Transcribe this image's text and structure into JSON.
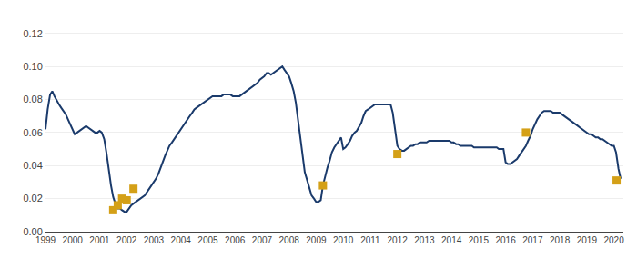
{
  "chart_data": {
    "type": "line",
    "xlim": [
      1999,
      2020.35
    ],
    "xticks": [
      1999,
      2000,
      2001,
      2002,
      2003,
      2004,
      2005,
      2006,
      2007,
      2008,
      2009,
      2010,
      2011,
      2012,
      2013,
      2014,
      2015,
      2016,
      2017,
      2018,
      2019,
      2020
    ],
    "ylim": [
      0.0,
      0.132
    ],
    "yticks": [
      {
        "value": 0.0,
        "label": "0.00"
      },
      0.02,
      0.04,
      0.06,
      0.08,
      {
        "value": 0.1,
        "label": "0.10"
      },
      0.12
    ],
    "grid": "y",
    "series": [
      {
        "type": "line",
        "color": "#1a3a6b",
        "x": [
          1999.0,
          1999.08,
          1999.17,
          1999.25,
          1999.33,
          1999.42,
          1999.5,
          1999.58,
          1999.67,
          1999.75,
          1999.83,
          1999.92,
          2000.0,
          2000.08,
          2000.17,
          2000.25,
          2000.33,
          2000.42,
          2000.5,
          2000.58,
          2000.67,
          2000.75,
          2000.83,
          2000.92,
          2001.0,
          2001.08,
          2001.17,
          2001.25,
          2001.33,
          2001.42,
          2001.5,
          2001.58,
          2001.67,
          2001.75,
          2001.83,
          2001.92,
          2002.0,
          2002.08,
          2002.17,
          2002.25,
          2002.33,
          2002.42,
          2002.5,
          2002.58,
          2002.67,
          2002.75,
          2002.83,
          2002.92,
          2003.0,
          2003.08,
          2003.17,
          2003.25,
          2003.33,
          2003.42,
          2003.5,
          2003.58,
          2003.67,
          2003.75,
          2003.83,
          2003.92,
          2004.0,
          2004.08,
          2004.17,
          2004.25,
          2004.33,
          2004.42,
          2004.5,
          2004.58,
          2004.67,
          2004.75,
          2004.83,
          2004.92,
          2005.0,
          2005.08,
          2005.17,
          2005.25,
          2005.33,
          2005.42,
          2005.5,
          2005.58,
          2005.67,
          2005.75,
          2005.83,
          2005.92,
          2006.0,
          2006.08,
          2006.17,
          2006.25,
          2006.33,
          2006.42,
          2006.5,
          2006.58,
          2006.67,
          2006.75,
          2006.83,
          2006.92,
          2007.0,
          2007.08,
          2007.17,
          2007.25,
          2007.33,
          2007.42,
          2007.5,
          2007.58,
          2007.67,
          2007.75,
          2007.83,
          2007.92,
          2008.0,
          2008.08,
          2008.17,
          2008.25,
          2008.33,
          2008.42,
          2008.5,
          2008.58,
          2008.67,
          2008.75,
          2008.83,
          2008.92,
          2009.0,
          2009.08,
          2009.17,
          2009.25,
          2009.33,
          2009.42,
          2009.5,
          2009.58,
          2009.67,
          2009.75,
          2009.83,
          2009.92,
          2010.0,
          2010.08,
          2010.17,
          2010.25,
          2010.33,
          2010.42,
          2010.5,
          2010.58,
          2010.67,
          2010.75,
          2010.83,
          2010.92,
          2011.0,
          2011.08,
          2011.17,
          2011.25,
          2011.33,
          2011.42,
          2011.5,
          2011.58,
          2011.67,
          2011.75,
          2011.83,
          2011.92,
          2012.0,
          2012.08,
          2012.17,
          2012.25,
          2012.33,
          2012.42,
          2012.5,
          2012.58,
          2012.67,
          2012.75,
          2012.83,
          2012.92,
          2013.0,
          2013.08,
          2013.17,
          2013.25,
          2013.33,
          2013.42,
          2013.5,
          2013.58,
          2013.67,
          2013.75,
          2013.83,
          2013.92,
          2014.0,
          2014.08,
          2014.17,
          2014.25,
          2014.33,
          2014.42,
          2014.5,
          2014.58,
          2014.67,
          2014.75,
          2014.83,
          2014.92,
          2015.0,
          2015.08,
          2015.17,
          2015.25,
          2015.33,
          2015.42,
          2015.5,
          2015.58,
          2015.67,
          2015.75,
          2015.83,
          2015.92,
          2016.0,
          2016.08,
          2016.17,
          2016.25,
          2016.33,
          2016.42,
          2016.5,
          2016.58,
          2016.67,
          2016.75,
          2016.83,
          2016.92,
          2017.0,
          2017.08,
          2017.17,
          2017.25,
          2017.33,
          2017.42,
          2017.5,
          2017.58,
          2017.67,
          2017.75,
          2017.83,
          2017.92,
          2018.0,
          2018.08,
          2018.17,
          2018.25,
          2018.33,
          2018.42,
          2018.5,
          2018.58,
          2018.67,
          2018.75,
          2018.83,
          2018.92,
          2019.0,
          2019.08,
          2019.17,
          2019.25,
          2019.33,
          2019.42,
          2019.5,
          2019.58,
          2019.67,
          2019.75,
          2019.83,
          2019.92,
          2020.0,
          2020.08,
          2020.17,
          2020.25
        ],
        "values": [
          0.062,
          0.074,
          0.083,
          0.085,
          0.082,
          0.079,
          0.077,
          0.075,
          0.073,
          0.071,
          0.068,
          0.065,
          0.062,
          0.059,
          0.06,
          0.061,
          0.062,
          0.063,
          0.064,
          0.063,
          0.062,
          0.061,
          0.06,
          0.06,
          0.061,
          0.06,
          0.056,
          0.048,
          0.038,
          0.028,
          0.021,
          0.017,
          0.014,
          0.014,
          0.013,
          0.012,
          0.012,
          0.014,
          0.016,
          0.017,
          0.018,
          0.019,
          0.02,
          0.021,
          0.022,
          0.024,
          0.026,
          0.028,
          0.03,
          0.032,
          0.035,
          0.038,
          0.042,
          0.046,
          0.049,
          0.052,
          0.054,
          0.056,
          0.058,
          0.06,
          0.062,
          0.064,
          0.066,
          0.068,
          0.07,
          0.072,
          0.074,
          0.075,
          0.076,
          0.077,
          0.078,
          0.079,
          0.08,
          0.081,
          0.082,
          0.082,
          0.082,
          0.082,
          0.082,
          0.083,
          0.083,
          0.083,
          0.083,
          0.082,
          0.082,
          0.082,
          0.082,
          0.083,
          0.084,
          0.085,
          0.086,
          0.087,
          0.088,
          0.089,
          0.09,
          0.092,
          0.093,
          0.094,
          0.096,
          0.096,
          0.095,
          0.096,
          0.097,
          0.098,
          0.099,
          0.1,
          0.098,
          0.096,
          0.094,
          0.09,
          0.085,
          0.078,
          0.068,
          0.056,
          0.044,
          0.036,
          0.031,
          0.026,
          0.022,
          0.02,
          0.018,
          0.018,
          0.019,
          0.028,
          0.034,
          0.039,
          0.043,
          0.048,
          0.051,
          0.053,
          0.055,
          0.057,
          0.05,
          0.051,
          0.053,
          0.055,
          0.058,
          0.06,
          0.061,
          0.063,
          0.066,
          0.07,
          0.073,
          0.074,
          0.075,
          0.076,
          0.077,
          0.077,
          0.077,
          0.077,
          0.077,
          0.077,
          0.077,
          0.077,
          0.072,
          0.062,
          0.052,
          0.05,
          0.049,
          0.049,
          0.05,
          0.051,
          0.052,
          0.052,
          0.053,
          0.053,
          0.054,
          0.054,
          0.054,
          0.054,
          0.055,
          0.055,
          0.055,
          0.055,
          0.055,
          0.055,
          0.055,
          0.055,
          0.055,
          0.055,
          0.054,
          0.054,
          0.053,
          0.053,
          0.052,
          0.052,
          0.052,
          0.052,
          0.052,
          0.052,
          0.051,
          0.051,
          0.051,
          0.051,
          0.051,
          0.051,
          0.051,
          0.051,
          0.051,
          0.051,
          0.051,
          0.05,
          0.05,
          0.05,
          0.042,
          0.041,
          0.041,
          0.042,
          0.043,
          0.044,
          0.046,
          0.048,
          0.05,
          0.052,
          0.055,
          0.058,
          0.062,
          0.065,
          0.068,
          0.07,
          0.072,
          0.073,
          0.073,
          0.073,
          0.073,
          0.072,
          0.072,
          0.072,
          0.072,
          0.071,
          0.07,
          0.069,
          0.068,
          0.067,
          0.066,
          0.065,
          0.064,
          0.063,
          0.062,
          0.061,
          0.06,
          0.059,
          0.059,
          0.058,
          0.057,
          0.057,
          0.056,
          0.056,
          0.055,
          0.054,
          0.053,
          0.052,
          0.052,
          0.048,
          0.038,
          0.032
        ]
      },
      {
        "type": "scatter",
        "marker": "square",
        "color": "#d4a017",
        "x": [
          2001.5,
          2001.67,
          2001.83,
          2002.0,
          2002.25,
          2009.25,
          2012.0,
          2016.75,
          2020.1
        ],
        "values": [
          0.013,
          0.016,
          0.02,
          0.019,
          0.026,
          0.028,
          0.047,
          0.06,
          0.031
        ]
      }
    ]
  }
}
